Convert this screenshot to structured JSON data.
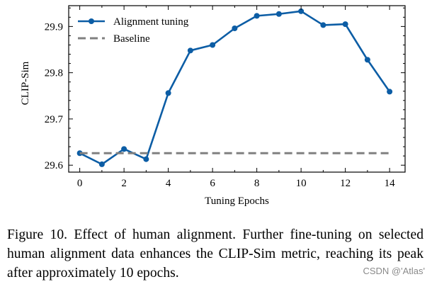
{
  "chart_data": {
    "type": "line",
    "xlabel": "Tuning Epochs",
    "ylabel": "CLIP-Sim",
    "xlim": [
      -0.5,
      14.7
    ],
    "ylim": [
      29.585,
      29.945
    ],
    "xticks": [
      0,
      2,
      4,
      6,
      8,
      10,
      12,
      14
    ],
    "yticks": [
      29.6,
      29.7,
      29.8,
      29.9
    ],
    "xtick_labels": [
      "0",
      "2",
      "4",
      "6",
      "8",
      "10",
      "12",
      "14"
    ],
    "ytick_labels": [
      "29.6",
      "29.7",
      "29.8",
      "29.9"
    ],
    "legend_position": "top-left",
    "series": [
      {
        "name": "Alignment tuning",
        "style": "solid-marker",
        "color": "#0c5da5",
        "x": [
          0,
          1,
          2,
          3,
          4,
          5,
          6,
          7,
          8,
          9,
          10,
          11,
          12,
          13,
          14
        ],
        "values": [
          29.626,
          29.602,
          29.635,
          29.613,
          29.756,
          29.848,
          29.86,
          29.896,
          29.923,
          29.927,
          29.933,
          29.903,
          29.905,
          29.828,
          29.759
        ]
      },
      {
        "name": "Baseline",
        "style": "dashed",
        "color": "#808080",
        "x": [
          0,
          14
        ],
        "values": [
          29.626,
          29.626
        ]
      }
    ]
  },
  "caption": {
    "text": "Figure 10.  Effect of human alignment.  Further fine-tuning on selected human alignment data enhances the CLIP-Sim metric, reaching its peak after approximately 10 epochs."
  },
  "watermark": "CSDN @'Atlas'"
}
